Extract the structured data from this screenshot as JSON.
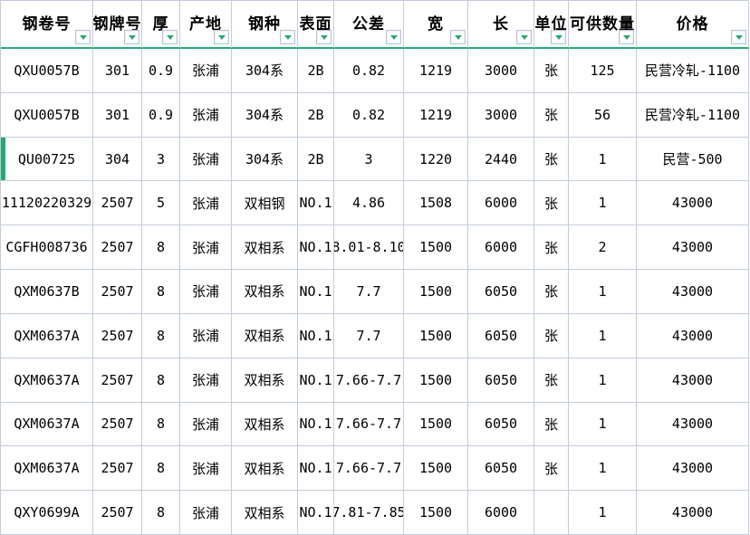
{
  "colors": {
    "accent_green": "#28a873",
    "grid_line": "#c3cbdb",
    "cell_background": "#ffffff",
    "text": "#000000"
  },
  "icons": {
    "filter_dropdown": "chevron-down-triangle"
  },
  "table": {
    "columns": [
      {
        "key": "coil-no",
        "label": "钢卷号"
      },
      {
        "key": "grade",
        "label": "钢牌号"
      },
      {
        "key": "thickness",
        "label": "厚"
      },
      {
        "key": "origin",
        "label": "产地"
      },
      {
        "key": "steel-type",
        "label": "钢种"
      },
      {
        "key": "surface",
        "label": "表面"
      },
      {
        "key": "tolerance",
        "label": "公差"
      },
      {
        "key": "width",
        "label": "宽"
      },
      {
        "key": "length",
        "label": "长"
      },
      {
        "key": "unit",
        "label": "单位"
      },
      {
        "key": "qty",
        "label": "可供数量"
      },
      {
        "key": "price",
        "label": "价格"
      }
    ],
    "highlighted_row_index": 2,
    "rows": [
      [
        "QXU0057B",
        "301",
        "0.9",
        "张浦",
        "304系",
        "2B",
        "0.82",
        "1219",
        "3000",
        "张",
        "125",
        "民营冷轧-1100"
      ],
      [
        "QXU0057B",
        "301",
        "0.9",
        "张浦",
        "304系",
        "2B",
        "0.82",
        "1219",
        "3000",
        "张",
        "56",
        "民营冷轧-1100"
      ],
      [
        "QU00725",
        "304",
        "3",
        "张浦",
        "304系",
        "2B",
        "3",
        "1220",
        "2440",
        "张",
        "1",
        "民营-500"
      ],
      [
        "11120220329",
        "2507",
        "5",
        "张浦",
        "双相钢",
        "NO.1",
        "4.86",
        "1508",
        "6000",
        "张",
        "1",
        "43000"
      ],
      [
        "CGFH008736",
        "2507",
        "8",
        "张浦",
        "双相系",
        "NO.1",
        "8.01-8.10",
        "1500",
        "6000",
        "张",
        "2",
        "43000"
      ],
      [
        "QXM0637B",
        "2507",
        "8",
        "张浦",
        "双相系",
        "NO.1",
        "7.7",
        "1500",
        "6050",
        "张",
        "1",
        "43000"
      ],
      [
        "QXM0637A",
        "2507",
        "8",
        "张浦",
        "双相系",
        "NO.1",
        "7.7",
        "1500",
        "6050",
        "张",
        "1",
        "43000"
      ],
      [
        "QXM0637A",
        "2507",
        "8",
        "张浦",
        "双相系",
        "NO.1",
        "7.66-7.7",
        "1500",
        "6050",
        "张",
        "1",
        "43000"
      ],
      [
        "QXM0637A",
        "2507",
        "8",
        "张浦",
        "双相系",
        "NO.1",
        "7.66-7.7",
        "1500",
        "6050",
        "张",
        "1",
        "43000"
      ],
      [
        "QXM0637A",
        "2507",
        "8",
        "张浦",
        "双相系",
        "NO.1",
        "7.66-7.7",
        "1500",
        "6050",
        "张",
        "1",
        "43000"
      ],
      [
        "QXY0699A",
        "2507",
        "8",
        "张浦",
        "双相系",
        "NO.1",
        "7.81-7.85",
        "1500",
        "6000",
        "",
        "1",
        "43000"
      ]
    ]
  }
}
